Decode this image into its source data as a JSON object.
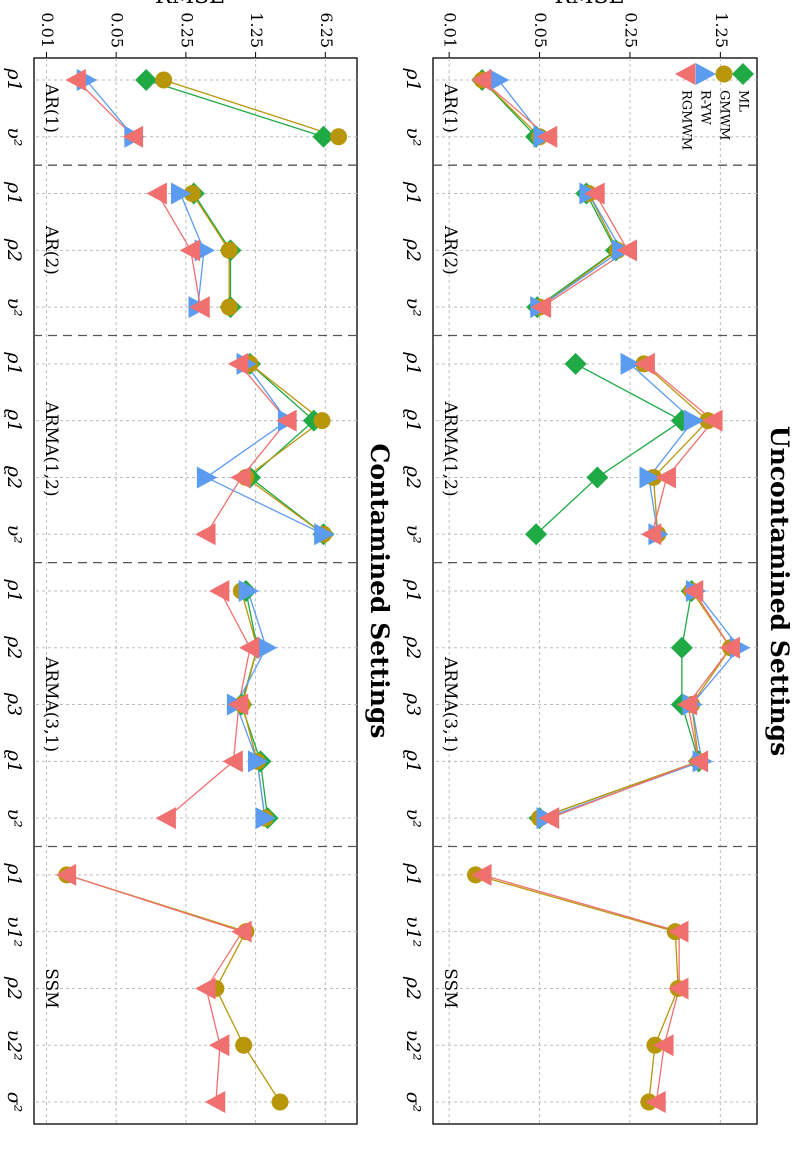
{
  "figure": {
    "ylabel": "RMSE*",
    "orientation": "rotated 90° clockwise"
  },
  "legend": {
    "placement": "top-left of upper panel",
    "items": [
      {
        "label": "ML",
        "color": "#1faa45",
        "marker": "diamond"
      },
      {
        "label": "GMWM",
        "color": "#b8960a",
        "marker": "circle"
      },
      {
        "label": "R-YW",
        "color": "#5b9bf0",
        "marker": "triangle"
      },
      {
        "label": "RGMWM",
        "color": "#f07070",
        "marker": "triangle-reverse"
      }
    ]
  },
  "chart_data": [
    {
      "type": "line",
      "title": "Uncontamined Settings",
      "ylabel": "RMSE*",
      "yscale": "log",
      "yticks": [
        "0.01",
        "0.05",
        "0.25",
        "1.25"
      ],
      "ylim": [
        0.0075,
        2.4
      ],
      "grid": true,
      "groups": [
        {
          "name": "AR(1)",
          "params": [
            "ρ1",
            "υ²"
          ]
        },
        {
          "name": "AR(2)",
          "params": [
            "ρ1",
            "ρ2",
            "υ²"
          ]
        },
        {
          "name": "ARMA(1,2)",
          "params": [
            "ρ1",
            "ϱ1",
            "ϱ2",
            "υ²"
          ]
        },
        {
          "name": "ARMA(3,1)",
          "params": [
            "ρ1",
            "ρ2",
            "ρ3",
            "ϱ1",
            "υ²"
          ]
        },
        {
          "name": "SSM",
          "params": [
            "ρ1",
            "υ1²",
            "ρ2",
            "υ2²",
            "σ²"
          ]
        }
      ],
      "series": [
        {
          "name": "ML",
          "values": [
            [
              0.018,
              0.047
            ],
            [
              0.115,
              0.195,
              0.048
            ],
            [
              0.095,
              0.63,
              0.14,
              0.047
            ],
            [
              0.75,
              0.63,
              0.63,
              0.85,
              0.05
            ],
            [
              null,
              null,
              null,
              null,
              null
            ]
          ]
        },
        {
          "name": "GMWM",
          "values": [
            [
              0.018,
              0.05
            ],
            [
              0.12,
              0.2,
              0.05
            ],
            [
              0.32,
              1.0,
              0.38,
              0.41
            ],
            [
              0.75,
              1.5,
              0.75,
              0.85,
              0.05
            ],
            [
              0.016,
              0.56,
              0.59,
              0.39,
              0.35
            ]
          ]
        },
        {
          "name": "R-YW",
          "values": [
            [
              0.024,
              0.053
            ],
            [
              0.12,
              0.215,
              0.05
            ],
            [
              0.25,
              0.77,
              0.35,
              0.41
            ],
            [
              0.8,
              1.75,
              0.75,
              0.9,
              0.056
            ],
            [
              null,
              null,
              null,
              null,
              null
            ]
          ]
        },
        {
          "name": "RGMWM",
          "values": [
            [
              0.018,
              0.058
            ],
            [
              0.135,
              0.24,
              0.052
            ],
            [
              0.33,
              1.1,
              0.48,
              0.37
            ],
            [
              0.78,
              1.5,
              0.7,
              0.85,
              0.06
            ],
            [
              0.018,
              0.6,
              0.6,
              0.46,
              0.4
            ]
          ]
        }
      ]
    },
    {
      "type": "line",
      "title": "Contamined Settings",
      "ylabel": "RMSE*",
      "yscale": "log",
      "yticks": [
        "0.01",
        "0.05",
        "0.25",
        "1.25",
        "6.25"
      ],
      "ylim": [
        0.0075,
        13
      ],
      "grid": true,
      "groups": [
        {
          "name": "AR(1)",
          "params": [
            "ρ1",
            "υ²"
          ]
        },
        {
          "name": "AR(2)",
          "params": [
            "ρ1",
            "ρ2",
            "υ²"
          ]
        },
        {
          "name": "ARMA(1,2)",
          "params": [
            "ρ1",
            "ϱ1",
            "ϱ2",
            "υ²"
          ]
        },
        {
          "name": "ARMA(3,1)",
          "params": [
            "ρ1",
            "ρ2",
            "ρ3",
            "ϱ1",
            "υ²"
          ]
        },
        {
          "name": "SSM",
          "params": [
            "ρ1",
            "υ1²",
            "ρ2",
            "υ2²",
            "σ²"
          ]
        }
      ],
      "series": [
        {
          "name": "ML",
          "values": [
            [
              0.1,
              6.0
            ],
            [
              0.3,
              0.7,
              0.7
            ],
            [
              1.1,
              4.8,
              1.1,
              6.0
            ],
            [
              1.0,
              1.3,
              0.9,
              1.4,
              1.65
            ],
            [
              null,
              null,
              null,
              null,
              null
            ]
          ]
        },
        {
          "name": "GMWM",
          "values": [
            [
              0.15,
              8.5
            ],
            [
              0.29,
              0.68,
              0.68
            ],
            [
              1.1,
              5.8,
              1.0,
              6.0
            ],
            [
              0.9,
              1.3,
              0.92,
              1.3,
              1.55
            ],
            [
              0.016,
              1.0,
              0.5,
              0.95,
              2.2
            ]
          ]
        },
        {
          "name": "R-YW",
          "values": [
            [
              0.025,
              0.075
            ],
            [
              0.22,
              0.38,
              0.33
            ],
            [
              1.0,
              2.6,
              0.4,
              6.0
            ],
            [
              1.05,
              1.6,
              0.8,
              1.3,
              1.55
            ],
            [
              null,
              null,
              null,
              null,
              null
            ]
          ]
        },
        {
          "name": "RGMWM",
          "values": [
            [
              0.02,
              0.075
            ],
            [
              0.13,
              0.28,
              0.35
            ],
            [
              0.85,
              2.6,
              0.9,
              0.4
            ],
            [
              0.55,
              1.1,
              0.85,
              0.75,
              0.16
            ],
            [
              0.016,
              0.92,
              0.4,
              0.55,
              0.5
            ]
          ]
        }
      ]
    }
  ]
}
